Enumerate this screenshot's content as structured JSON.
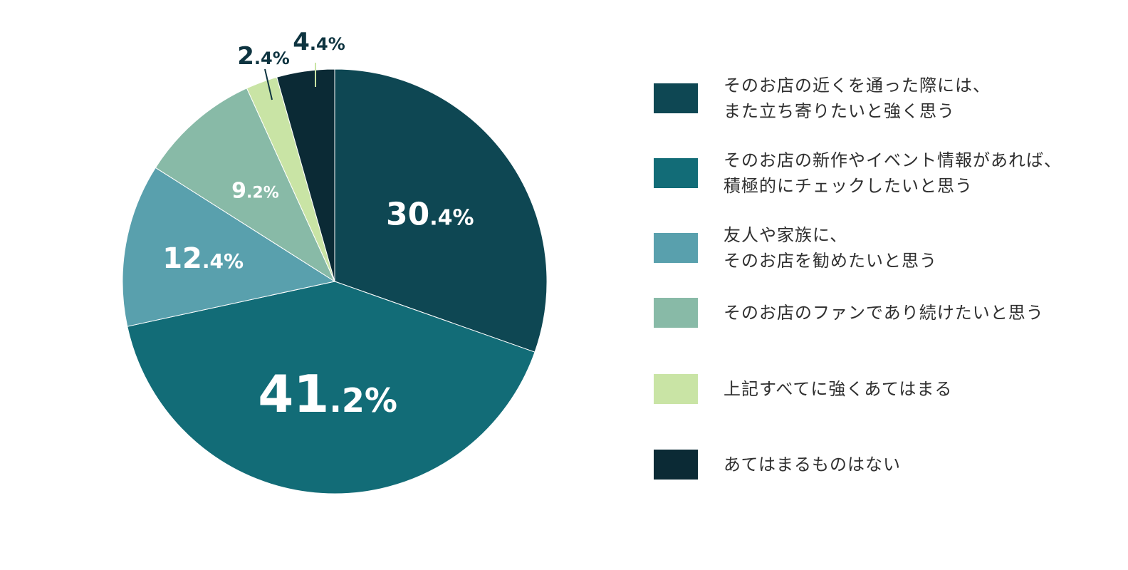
{
  "chart_data": {
    "type": "pie",
    "title": "",
    "slices": [
      {
        "label": "そのお店の近くを通った際には、\nまた立ち寄りたいと強く思う",
        "value": 30.4,
        "value_main": "30",
        "value_dec": ".4%",
        "color": "#0e4753"
      },
      {
        "label": "そのお店の新作やイベント情報があれば、\n積極的にチェックしたいと思う",
        "value": 41.2,
        "value_main": "41",
        "value_dec": ".2%",
        "color": "#126c77"
      },
      {
        "label": "友人や家族に、\nそのお店を勧めたいと思う",
        "value": 12.4,
        "value_main": "12",
        "value_dec": ".4%",
        "color": "#59a0ad"
      },
      {
        "label": "そのお店のファンであり続けたいと思う",
        "value": 9.2,
        "value_main": "9",
        "value_dec": ".2%",
        "color": "#88baa7"
      },
      {
        "label": "上記すべてに強くあてはまる",
        "value": 2.4,
        "value_main": "2",
        "value_dec": ".4%",
        "color": "#c9e4a5"
      },
      {
        "label": "あてはまるものはない",
        "value": 4.4,
        "value_main": "4",
        "value_dec": ".4%",
        "color": "#0b2a35"
      }
    ],
    "legend_position": "right",
    "start_angle": "12 o'clock",
    "direction": "clockwise"
  }
}
